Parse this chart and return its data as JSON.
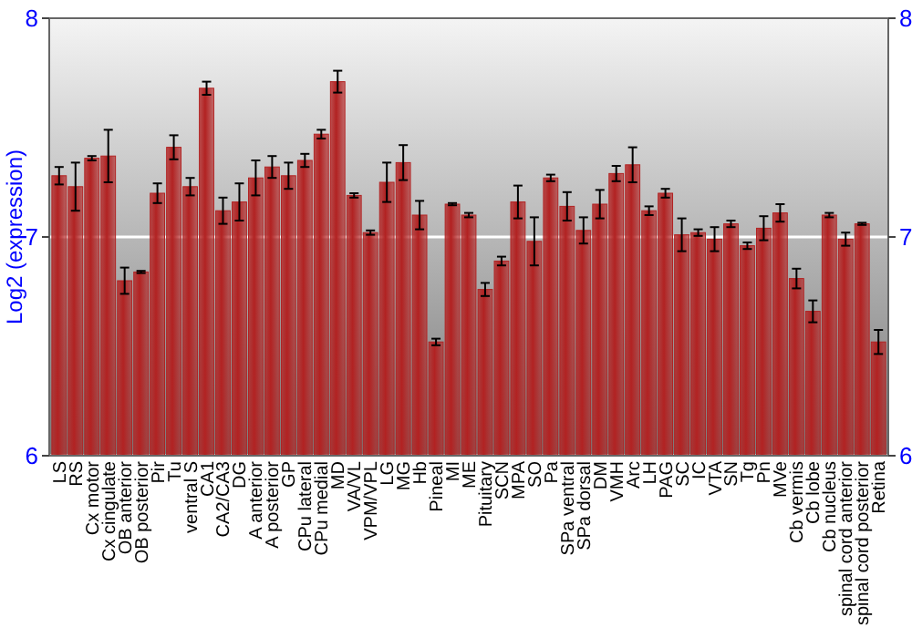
{
  "chart_data": {
    "type": "bar",
    "ylabel": "Log2 (expression)",
    "categories": [
      "LS",
      "RS",
      "Cx motor",
      "Cx cingulate",
      "OB anterior",
      "OB posterior",
      "Pir",
      "Tu",
      "ventral S",
      "CA1",
      "CA2/CA3",
      "DG",
      "A anterior",
      "A posterior",
      "GP",
      "CPu lateral",
      "CPu medial",
      "MD",
      "VA/VL",
      "VPM/VPL",
      "LG",
      "MG",
      "Hb",
      "Pineal",
      "MI",
      "ME",
      "Pituitary",
      "SCN",
      "MPA",
      "SO",
      "Pa",
      "SPa ventral",
      "SPa dorsal",
      "DM",
      "VMH",
      "Arc",
      "LH",
      "PAG",
      "SC",
      "IC",
      "VTA",
      "SN",
      "Tg",
      "Pn",
      "MVe",
      "Cb vermis",
      "Cb lobe",
      "Cb nucleus",
      "spinal cord anterior",
      "spinal cord posterior",
      "Retina"
    ],
    "values": [
      7.28,
      7.23,
      7.36,
      7.37,
      6.8,
      6.84,
      7.2,
      7.41,
      7.23,
      7.68,
      7.12,
      7.16,
      7.27,
      7.32,
      7.28,
      7.35,
      7.47,
      7.71,
      7.19,
      7.02,
      7.25,
      7.34,
      7.1,
      6.52,
      7.15,
      7.1,
      6.76,
      6.89,
      7.16,
      6.98,
      7.27,
      7.14,
      7.03,
      7.15,
      7.29,
      7.33,
      7.12,
      7.2,
      7.01,
      7.02,
      6.99,
      7.06,
      6.96,
      7.04,
      7.11,
      6.81,
      6.66,
      7.1,
      6.99,
      7.06,
      6.52
    ],
    "errors": [
      0.04,
      0.11,
      0.01,
      0.12,
      0.06,
      0.005,
      0.045,
      0.055,
      0.04,
      0.03,
      0.06,
      0.085,
      0.08,
      0.05,
      0.06,
      0.03,
      0.02,
      0.05,
      0.01,
      0.01,
      0.09,
      0.08,
      0.065,
      0.015,
      0.005,
      0.01,
      0.03,
      0.02,
      0.075,
      0.11,
      0.015,
      0.065,
      0.06,
      0.065,
      0.035,
      0.08,
      0.02,
      0.02,
      0.075,
      0.015,
      0.055,
      0.015,
      0.015,
      0.055,
      0.04,
      0.045,
      0.05,
      0.01,
      0.03,
      0.005,
      0.055
    ],
    "color": "#b22222",
    "ylim": [
      6,
      8
    ],
    "yticks": [
      6,
      7,
      8
    ],
    "y2lim": [
      6,
      8
    ],
    "y2ticks": [
      6,
      7,
      8
    ],
    "grid": "y"
  }
}
